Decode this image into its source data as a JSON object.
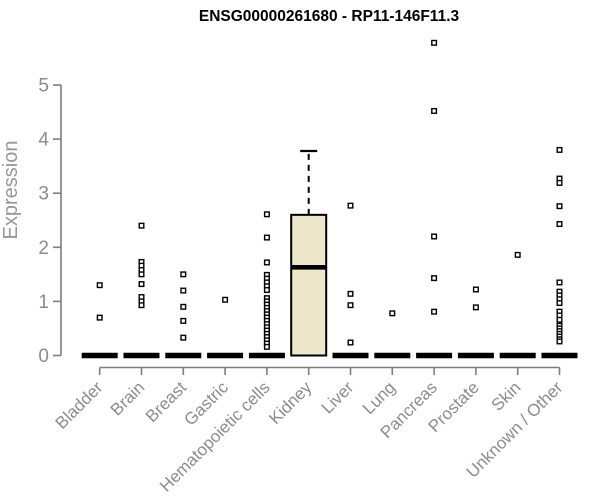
{
  "page": {
    "title": "ENSG00000261680 - RP11-146F11.3"
  },
  "chart_data": {
    "type": "boxplot",
    "title": "ENSG00000261680 - RP11-146F11.3",
    "xlabel": "",
    "ylabel": "Expression",
    "ylim": [
      0,
      5.9
    ],
    "yticks": [
      0,
      1,
      2,
      3,
      4,
      5
    ],
    "grid": false,
    "legend": "none",
    "axis_color": "#7d7d7d",
    "label_color": "#8c8c8c",
    "box_fill": "#ede7cb",
    "box_stroke": "#000000",
    "point_fill": "#ffffff",
    "point_stroke": "#000000",
    "categories": [
      "Bladder",
      "Brain",
      "Breast",
      "Gastric",
      "Hematopoietic cells",
      "Kidney",
      "Liver",
      "Lung",
      "Pancreas",
      "Prostate",
      "Skin",
      "Unknown / Other"
    ],
    "groups": [
      {
        "label": "Bladder",
        "box": {
          "whisker_low": 0,
          "q1": 0,
          "median": 0,
          "q3": 0,
          "whisker_high": 0
        },
        "points": [
          1.3,
          0.7
        ]
      },
      {
        "label": "Brain",
        "box": {
          "whisker_low": 0,
          "q1": 0,
          "median": 0,
          "q3": 0,
          "whisker_high": 0
        },
        "points": [
          2.4,
          1.73,
          1.66,
          1.58,
          1.5,
          1.32,
          1.08,
          1.0,
          0.93
        ]
      },
      {
        "label": "Breast",
        "box": {
          "whisker_low": 0,
          "q1": 0,
          "median": 0,
          "q3": 0,
          "whisker_high": 0
        },
        "points": [
          1.5,
          1.2,
          0.9,
          0.64,
          0.33
        ]
      },
      {
        "label": "Gastric",
        "box": {
          "whisker_low": 0,
          "q1": 0,
          "median": 0,
          "q3": 0,
          "whisker_high": 0
        },
        "points": [
          1.03
        ]
      },
      {
        "label": "Hematopoietic cells",
        "box": {
          "whisker_low": 0,
          "q1": 0,
          "median": 0,
          "q3": 0,
          "whisker_high": 0
        },
        "points": [
          2.61,
          2.18,
          1.72,
          1.49,
          1.42,
          1.35,
          1.28,
          1.21,
          1.06,
          1.0,
          0.94,
          0.88,
          0.82,
          0.76,
          0.7,
          0.64,
          0.58,
          0.52,
          0.46,
          0.4,
          0.34,
          0.28,
          0.22,
          0.16
        ]
      },
      {
        "label": "Kidney",
        "box": {
          "whisker_low": 0,
          "q1": 0,
          "median": 1.63,
          "q3": 2.6,
          "whisker_high": 3.78
        },
        "points": []
      },
      {
        "label": "Liver",
        "box": {
          "whisker_low": 0,
          "q1": 0,
          "median": 0,
          "q3": 0,
          "whisker_high": 0
        },
        "points": [
          2.77,
          1.14,
          0.93,
          0.24
        ]
      },
      {
        "label": "Lung",
        "box": {
          "whisker_low": 0,
          "q1": 0,
          "median": 0,
          "q3": 0,
          "whisker_high": 0
        },
        "points": [
          0.78
        ]
      },
      {
        "label": "Pancreas",
        "box": {
          "whisker_low": 0,
          "q1": 0,
          "median": 0,
          "q3": 0,
          "whisker_high": 0
        },
        "points": [
          5.78,
          4.52,
          2.2,
          1.43,
          0.81
        ]
      },
      {
        "label": "Prostate",
        "box": {
          "whisker_low": 0,
          "q1": 0,
          "median": 0,
          "q3": 0,
          "whisker_high": 0
        },
        "points": [
          1.22,
          0.89
        ]
      },
      {
        "label": "Skin",
        "box": {
          "whisker_low": 0,
          "q1": 0,
          "median": 0,
          "q3": 0,
          "whisker_high": 0
        },
        "points": [
          1.86
        ]
      },
      {
        "label": "Unknown / Other",
        "box": {
          "whisker_low": 0,
          "q1": 0,
          "median": 0,
          "q3": 0,
          "whisker_high": 0
        },
        "points": [
          3.8,
          3.27,
          3.19,
          2.76,
          2.43,
          1.35,
          1.18,
          1.11,
          1.04,
          0.97,
          0.81,
          0.74,
          0.66,
          0.55,
          0.5,
          0.45,
          0.4,
          0.35,
          0.3,
          0.26
        ]
      }
    ]
  }
}
